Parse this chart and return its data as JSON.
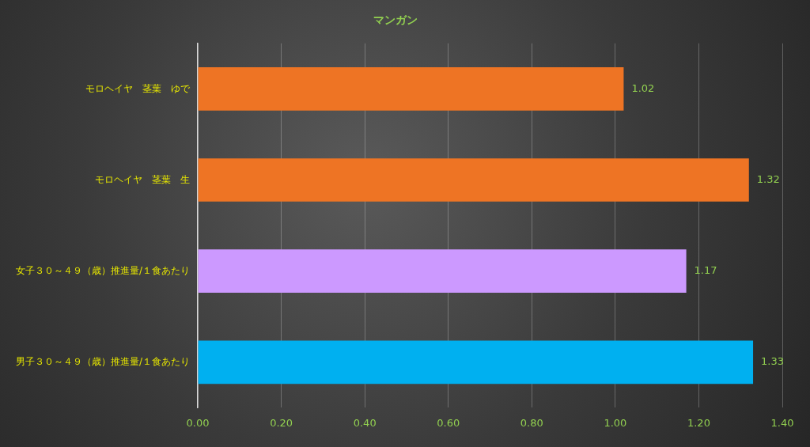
{
  "chart_data": {
    "type": "bar",
    "orientation": "horizontal",
    "title": "マンガン",
    "categories": [
      "モロヘイヤ　茎葉　ゆで",
      "モロヘイヤ　茎葉　生",
      "女子３０～４９（歳）推進量/１食あたり",
      "男子３０～４９（歳）推進量/１食あたり"
    ],
    "values": [
      1.02,
      1.32,
      1.17,
      1.33
    ],
    "colors": [
      "#ee7424",
      "#ee7424",
      "#cc99ff",
      "#00b0f0"
    ],
    "xlim": [
      0,
      1.4
    ],
    "xticks": [
      {
        "value": 0,
        "label": "0.00"
      },
      {
        "value": 0.2,
        "label": "0.20"
      },
      {
        "value": 0.4,
        "label": "0.40"
      },
      {
        "value": 0.6,
        "label": "0.60"
      },
      {
        "value": 0.8,
        "label": "0.80"
      },
      {
        "value": 1.0,
        "label": "1.00"
      },
      {
        "value": 1.2,
        "label": "1.20"
      },
      {
        "value": 1.4,
        "label": "1.40"
      }
    ],
    "grid": "x",
    "legend": false,
    "data_labels": true
  }
}
